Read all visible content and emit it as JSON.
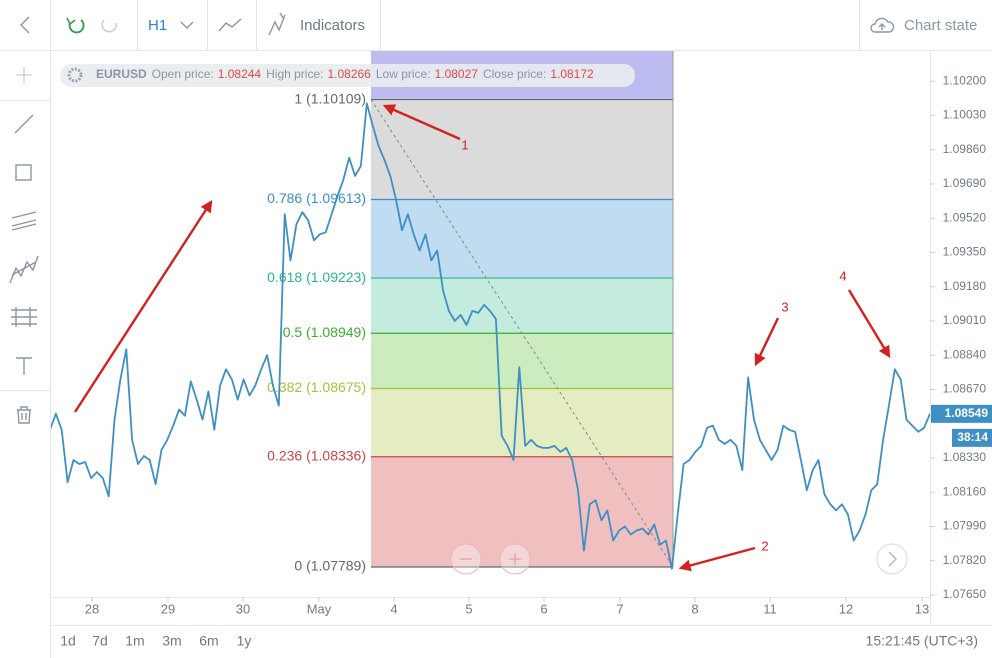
{
  "toolbar": {
    "timeframe": "H1",
    "indicators": "Indicators",
    "chart_state": "Chart state"
  },
  "info_bar": {
    "symbol": "EURUSD",
    "fields": [
      {
        "label": "Open price:",
        "value": 1.08244
      },
      {
        "label": "High price:",
        "value": 1.08266
      },
      {
        "label": "Low price:",
        "value": 1.08027
      },
      {
        "label": "Close price:",
        "value": 1.08172
      }
    ]
  },
  "chart_data": {
    "type": "line",
    "series": [
      {
        "color": "#3d8fc4",
        "values": [
          1.0847,
          1.0855,
          1.0847,
          1.0821,
          1.0832,
          1.083,
          1.0831,
          1.0823,
          1.0826,
          1.0823,
          1.0814,
          1.0852,
          1.0872,
          1.0887,
          1.0842,
          1.083,
          1.0834,
          1.0832,
          1.082,
          1.0837,
          1.0842,
          1.0849,
          1.0857,
          1.0854,
          1.0871,
          1.0862,
          1.0852,
          1.0866,
          1.0847,
          1.0869,
          1.0877,
          1.0872,
          1.0862,
          1.0872,
          1.0864,
          1.0869,
          1.0877,
          1.0884,
          1.0869,
          1.0859,
          1.0954,
          1.0931,
          1.0949,
          1.0955,
          1.0951,
          1.0941,
          1.0944,
          1.0945,
          1.0954,
          1.0963,
          1.0971,
          1.0982,
          1.0973,
          1.0978,
          1.1009,
          1.0998,
          1.0988,
          1.0981,
          1.0973,
          1.0961,
          1.0946,
          1.0954,
          1.0944,
          1.0936,
          1.0944,
          1.0931,
          1.0936,
          1.0916,
          1.0906,
          1.0901,
          1.0904,
          1.0899,
          1.0906,
          1.0905,
          1.0909,
          1.0906,
          1.0902,
          1.0844,
          1.0839,
          1.0832,
          1.0878,
          1.0839,
          1.0842,
          1.0839,
          1.0838,
          1.0838,
          1.0839,
          1.0836,
          1.0838,
          1.0832,
          1.0817,
          1.0787,
          1.081,
          1.0812,
          1.0802,
          1.0807,
          1.0792,
          1.0797,
          1.0799,
          1.0795,
          1.0797,
          1.0798,
          1.0795,
          1.08,
          1.079,
          1.0792,
          1.0778,
          1.0805,
          1.083,
          1.0832,
          1.0836,
          1.0839,
          1.0848,
          1.0849,
          1.0842,
          1.084,
          1.0842,
          1.0839,
          1.0827,
          1.0873,
          1.0852,
          1.0842,
          1.0837,
          1.0832,
          1.0837,
          1.0849,
          1.0847,
          1.0846,
          1.0832,
          1.0817,
          1.0827,
          1.0832,
          1.0815,
          1.081,
          1.0807,
          1.081,
          1.0805,
          1.0792,
          1.0797,
          1.0805,
          1.0817,
          1.082,
          1.0842,
          1.0859,
          1.0877,
          1.0872,
          1.0852,
          1.0849,
          1.0846,
          1.0848,
          1.0855
        ]
      }
    ],
    "ylim": [
      1.0764,
      1.1035
    ],
    "yticks": [
      {
        "value": 1.102,
        "label": "1.10200"
      },
      {
        "value": 1.1003,
        "label": "1.10030"
      },
      {
        "value": 1.0986,
        "label": "1.09860"
      },
      {
        "value": 1.0969,
        "label": "1.09690"
      },
      {
        "value": 1.0952,
        "label": "1.09520"
      },
      {
        "value": 1.0935,
        "label": "1.09350"
      },
      {
        "value": 1.0918,
        "label": "1.09180"
      },
      {
        "value": 1.0901,
        "label": "1.09010"
      },
      {
        "value": 1.0884,
        "label": "1.08840"
      },
      {
        "value": 1.0867,
        "label": "1.08670"
      },
      {
        "value": 1.0833,
        "label": "1.08330"
      },
      {
        "value": 1.0816,
        "label": "1.08160"
      },
      {
        "value": 1.0799,
        "label": "1.07990"
      },
      {
        "value": 1.0782,
        "label": "1.07820"
      },
      {
        "value": 1.0765,
        "label": "1.07650"
      }
    ],
    "x_labels": [
      "28",
      "29",
      "30",
      "May",
      "4",
      "5",
      "6",
      "7",
      "8",
      "11",
      "12",
      "13"
    ],
    "fib_levels": [
      {
        "label": "1 (1.10109)",
        "value": 1.10109,
        "color": "#666666",
        "fill": "#b8b8f0"
      },
      {
        "label": "0.786 (1.09613)",
        "value": 1.09613,
        "color": "#3a8fc9",
        "fill": "#d9d9d9"
      },
      {
        "label": "0.618 (1.09223)",
        "value": 1.09223,
        "color": "#2bb58a",
        "fill": "#bcdaf0"
      },
      {
        "label": "0.5 (1.08949)",
        "value": 1.08949,
        "color": "#3aae2e",
        "fill": "#c0ebdd"
      },
      {
        "label": "0.382 (1.08675)",
        "value": 1.08675,
        "color": "#a5c23a",
        "fill": "#c8ebbb"
      },
      {
        "label": "0.236 (1.08336)",
        "value": 1.08336,
        "color": "#c84545",
        "fill": "#e3ecbe"
      },
      {
        "label": "0 (1.07789)",
        "value": 1.07789,
        "color": "#666666",
        "fill": "#efbdbd"
      }
    ],
    "last_price": {
      "value": 1.08549,
      "label": "1.08549"
    },
    "timer": "38:14",
    "annotations": [
      "1",
      "2",
      "3",
      "4"
    ]
  },
  "range_buttons": [
    "1d",
    "7d",
    "1m",
    "3m",
    "6m",
    "1y"
  ],
  "clock": "15:21:45 (UTC+3)"
}
